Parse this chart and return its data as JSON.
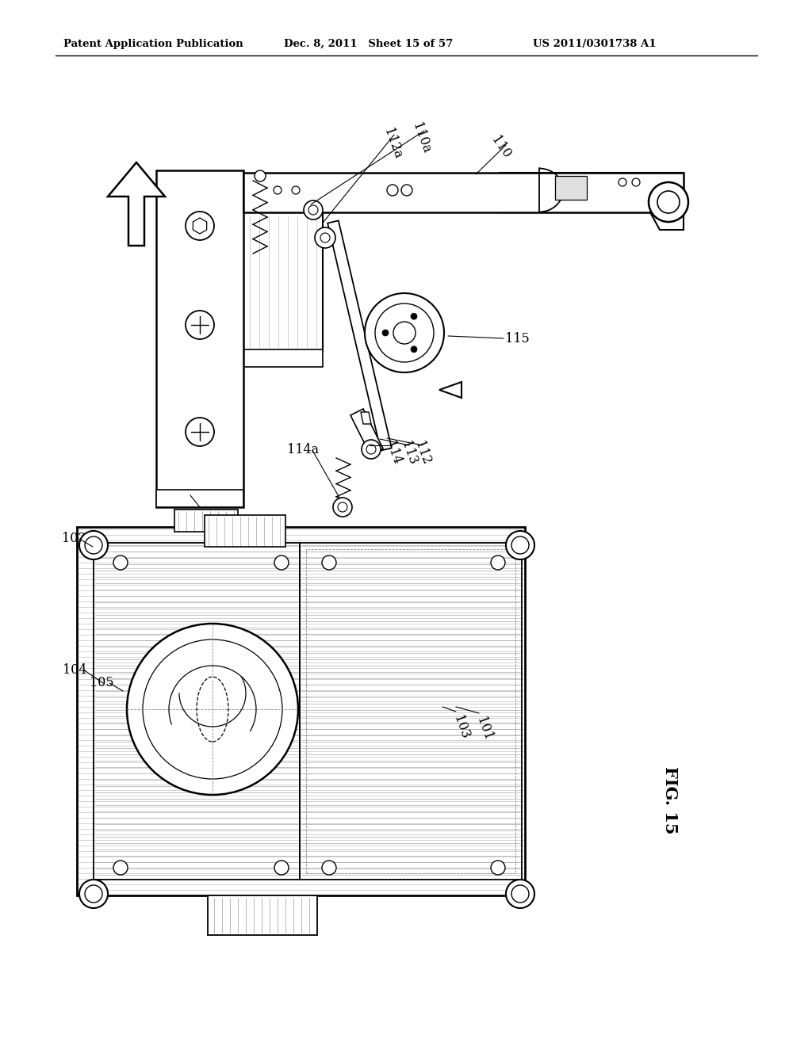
{
  "header_left": "Patent Application Publication",
  "header_mid": "Dec. 8, 2011   Sheet 15 of 57",
  "header_right": "US 2011/0301738 A1",
  "fig_label": "FIG. 15",
  "bg_color": "#ffffff"
}
